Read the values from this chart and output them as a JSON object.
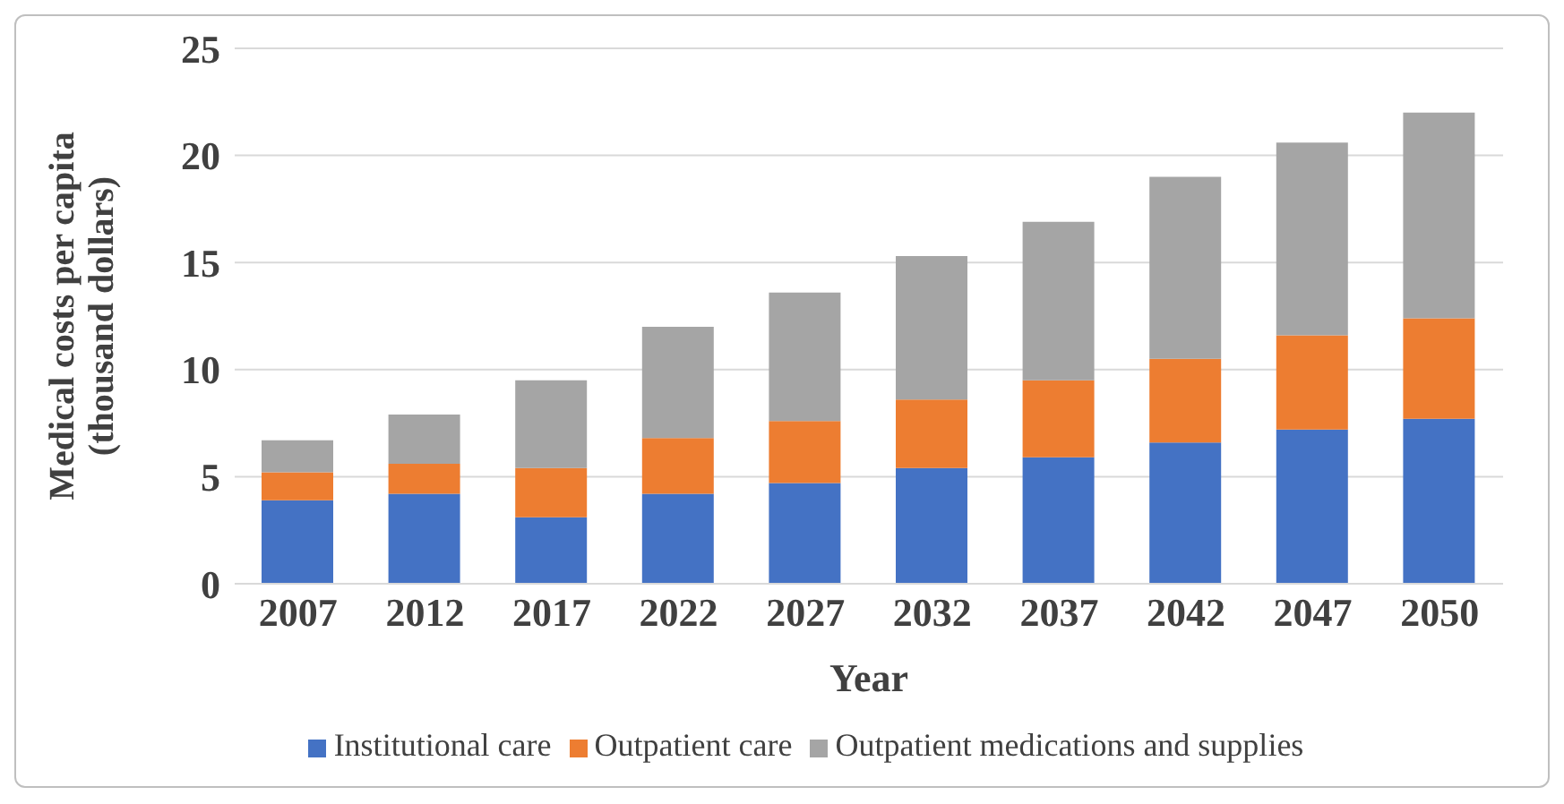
{
  "chart_data": {
    "type": "bar",
    "stacked": true,
    "xlabel": "Year",
    "ylabel": "Medical costs per capita (thousand dollars)",
    "categories": [
      "2007",
      "2012",
      "2017",
      "2022",
      "2027",
      "2032",
      "2037",
      "2042",
      "2047",
      "2050"
    ],
    "series": [
      {
        "name": "Institutional care",
        "color": "#4472c4",
        "values": [
          3.9,
          4.2,
          3.1,
          4.2,
          4.7,
          5.4,
          5.9,
          6.6,
          7.2,
          7.7
        ]
      },
      {
        "name": "Outpatient care",
        "color": "#ed7d31",
        "values": [
          1.3,
          1.4,
          2.3,
          2.6,
          2.9,
          3.2,
          3.6,
          3.9,
          4.4,
          4.7
        ]
      },
      {
        "name": "Outpatient medications and supplies",
        "color": "#a5a5a5",
        "values": [
          1.5,
          2.3,
          4.1,
          5.2,
          6.0,
          6.7,
          7.4,
          8.5,
          9.0,
          9.6
        ]
      }
    ],
    "ylim": [
      0,
      25
    ],
    "yticks": [
      0,
      5,
      10,
      15,
      20,
      25
    ],
    "grid": "y",
    "legend": "bottom"
  }
}
